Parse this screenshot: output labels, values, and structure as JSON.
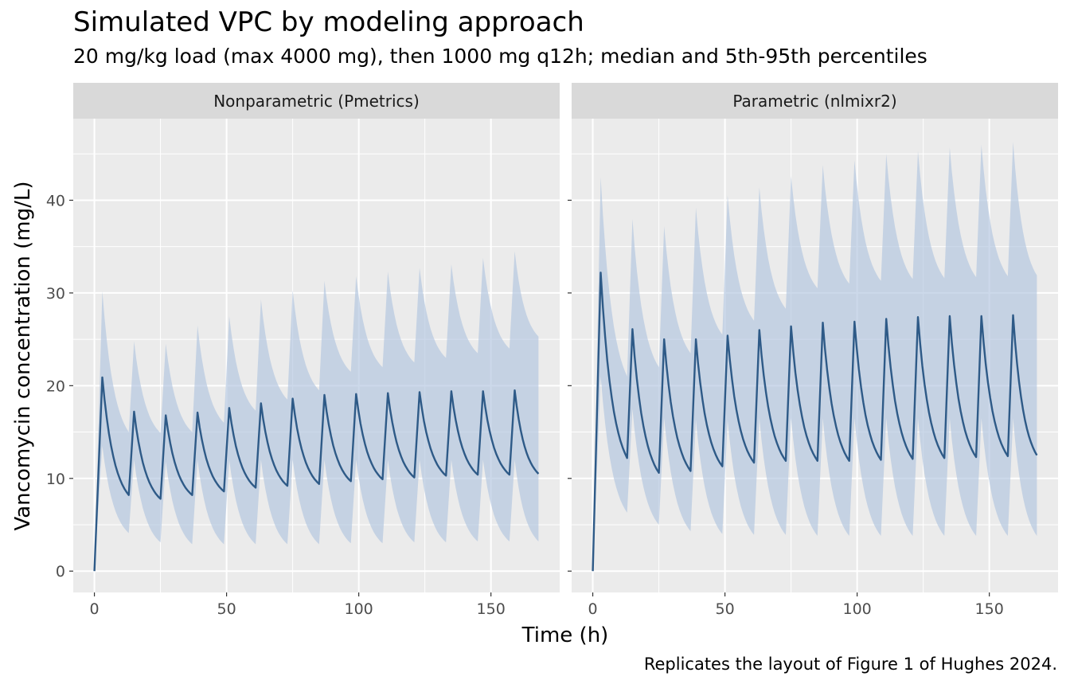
{
  "chart_data": {
    "type": "area",
    "title": "Simulated VPC by modeling approach",
    "subtitle": "20 mg/kg load (max 4000 mg), then 1000 mg q12h; median and 5th-95th percentiles",
    "caption": "Replicates the layout of Figure 1 of Hughes 2024.",
    "xlabel": "Time (h)",
    "ylabel": "Vancomycin concentration (mg/L)",
    "xlim": [
      -8,
      176
    ],
    "ylim": [
      -2.3,
      48.8
    ],
    "x_ticks": [
      0,
      50,
      100,
      150
    ],
    "y_ticks": [
      0,
      10,
      20,
      30,
      40
    ],
    "grid": true,
    "colors": {
      "ribbon": "#b0c4de",
      "median": "#2e5a87",
      "panel_bg": "#ebebeb",
      "strip_bg": "#d9d9d9"
    },
    "dosing": {
      "first_peak_h": 3,
      "interval_h": 12,
      "end_h": 168
    },
    "panels": [
      {
        "name": "Nonparametric (Pmetrics)",
        "peaks": [
          {
            "median": 20.9,
            "p5": 13.5,
            "p95": 30.2
          },
          {
            "median": 17.2,
            "p5": 12.0,
            "p95": 24.8
          },
          {
            "median": 16.8,
            "p5": 11.8,
            "p95": 24.5
          },
          {
            "median": 17.1,
            "p5": 12.0,
            "p95": 26.5
          },
          {
            "median": 17.6,
            "p5": 12.0,
            "p95": 27.5
          },
          {
            "median": 18.1,
            "p5": 12.0,
            "p95": 29.3
          },
          {
            "median": 18.6,
            "p5": 12.0,
            "p95": 30.3
          },
          {
            "median": 19.0,
            "p5": 12.0,
            "p95": 31.3
          },
          {
            "median": 19.1,
            "p5": 12.0,
            "p95": 31.8
          },
          {
            "median": 19.2,
            "p5": 12.0,
            "p95": 32.3
          },
          {
            "median": 19.3,
            "p5": 12.0,
            "p95": 32.7
          },
          {
            "median": 19.4,
            "p5": 12.0,
            "p95": 33.1
          },
          {
            "median": 19.4,
            "p5": 12.0,
            "p95": 33.8
          },
          {
            "median": 19.5,
            "p5": 12.0,
            "p95": 34.5
          }
        ],
        "troughs": [
          {
            "median": 8.2,
            "p5": 4.1,
            "p95": 15.0
          },
          {
            "median": 7.8,
            "p5": 3.1,
            "p95": 14.9
          },
          {
            "median": 8.2,
            "p5": 2.9,
            "p95": 15.0
          },
          {
            "median": 8.6,
            "p5": 2.9,
            "p95": 16.0
          },
          {
            "median": 9.0,
            "p5": 2.9,
            "p95": 17.3
          },
          {
            "median": 9.2,
            "p5": 2.9,
            "p95": 18.5
          },
          {
            "median": 9.4,
            "p5": 2.9,
            "p95": 19.5
          },
          {
            "median": 9.7,
            "p5": 3.0,
            "p95": 21.5
          },
          {
            "median": 9.9,
            "p5": 3.0,
            "p95": 22.0
          },
          {
            "median": 10.1,
            "p5": 3.1,
            "p95": 22.5
          },
          {
            "median": 10.3,
            "p5": 3.1,
            "p95": 23.0
          },
          {
            "median": 10.4,
            "p5": 3.2,
            "p95": 23.5
          },
          {
            "median": 10.4,
            "p5": 3.2,
            "p95": 24.0
          },
          {
            "median": 10.5,
            "p5": 3.2,
            "p95": 25.3
          }
        ]
      },
      {
        "name": "Parametric (nlmixr2)",
        "peaks": [
          {
            "median": 32.2,
            "p5": 21.0,
            "p95": 42.5
          },
          {
            "median": 26.1,
            "p5": 17.5,
            "p95": 38.0
          },
          {
            "median": 25.0,
            "p5": 16.5,
            "p95": 37.2
          },
          {
            "median": 25.0,
            "p5": 16.3,
            "p95": 39.2
          },
          {
            "median": 25.4,
            "p5": 16.3,
            "p95": 40.5
          },
          {
            "median": 26.0,
            "p5": 16.5,
            "p95": 41.4
          },
          {
            "median": 26.4,
            "p5": 16.5,
            "p95": 42.6
          },
          {
            "median": 26.8,
            "p5": 16.5,
            "p95": 43.8
          },
          {
            "median": 26.9,
            "p5": 16.5,
            "p95": 44.3
          },
          {
            "median": 27.2,
            "p5": 16.5,
            "p95": 45.0
          },
          {
            "median": 27.4,
            "p5": 16.5,
            "p95": 45.3
          },
          {
            "median": 27.5,
            "p5": 16.5,
            "p95": 45.7
          },
          {
            "median": 27.5,
            "p5": 16.5,
            "p95": 46.0
          },
          {
            "median": 27.6,
            "p5": 16.5,
            "p95": 46.3
          }
        ],
        "troughs": [
          {
            "median": 12.2,
            "p5": 6.3,
            "p95": 21.0
          },
          {
            "median": 10.6,
            "p5": 5.0,
            "p95": 22.0
          },
          {
            "median": 10.8,
            "p5": 4.3,
            "p95": 23.5
          },
          {
            "median": 11.3,
            "p5": 4.0,
            "p95": 25.5
          },
          {
            "median": 11.7,
            "p5": 3.9,
            "p95": 27.0
          },
          {
            "median": 11.9,
            "p5": 3.9,
            "p95": 28.3
          },
          {
            "median": 11.9,
            "p5": 3.8,
            "p95": 30.5
          },
          {
            "median": 11.9,
            "p5": 3.8,
            "p95": 31.0
          },
          {
            "median": 12.0,
            "p5": 3.8,
            "p95": 31.3
          },
          {
            "median": 12.1,
            "p5": 3.8,
            "p95": 31.5
          },
          {
            "median": 12.2,
            "p5": 3.8,
            "p95": 31.6
          },
          {
            "median": 12.3,
            "p5": 3.8,
            "p95": 31.7
          },
          {
            "median": 12.4,
            "p5": 3.8,
            "p95": 31.8
          },
          {
            "median": 12.5,
            "p5": 3.8,
            "p95": 31.9
          }
        ]
      }
    ]
  }
}
